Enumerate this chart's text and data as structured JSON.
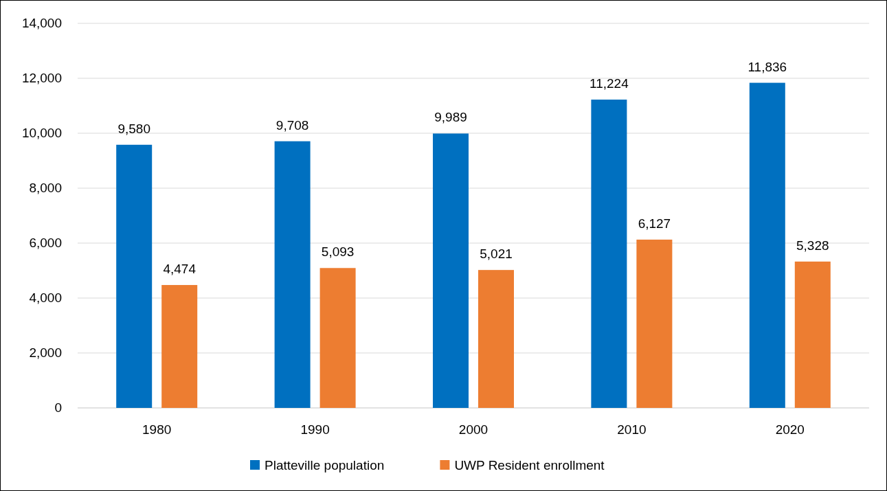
{
  "chart_data": {
    "type": "bar",
    "categories": [
      "1980",
      "1990",
      "2000",
      "2010",
      "2020"
    ],
    "series": [
      {
        "name": "Platteville population",
        "color": "#0070c0",
        "values": [
          9580,
          9708,
          9989,
          11224,
          11836
        ],
        "value_labels": [
          "9,580",
          "9,708",
          "9,989",
          "11,224",
          "11,836"
        ]
      },
      {
        "name": "UWP Resident enrollment",
        "color": "#ed7d31",
        "values": [
          4474,
          5093,
          5021,
          6127,
          5328
        ],
        "value_labels": [
          "4,474",
          "5,093",
          "5,021",
          "6,127",
          "5,328"
        ]
      }
    ],
    "ylim": [
      0,
      14000
    ],
    "yticks": [
      {
        "value": 0,
        "label": "0"
      },
      {
        "value": 2000,
        "label": "2,000"
      },
      {
        "value": 4000,
        "label": "4,000"
      },
      {
        "value": 6000,
        "label": "6,000"
      },
      {
        "value": 8000,
        "label": "8,000"
      },
      {
        "value": 10000,
        "label": "10,000"
      },
      {
        "value": 12000,
        "label": "12,000"
      },
      {
        "value": 14000,
        "label": "14,000"
      }
    ],
    "grid": "y",
    "legend": "bottom"
  }
}
